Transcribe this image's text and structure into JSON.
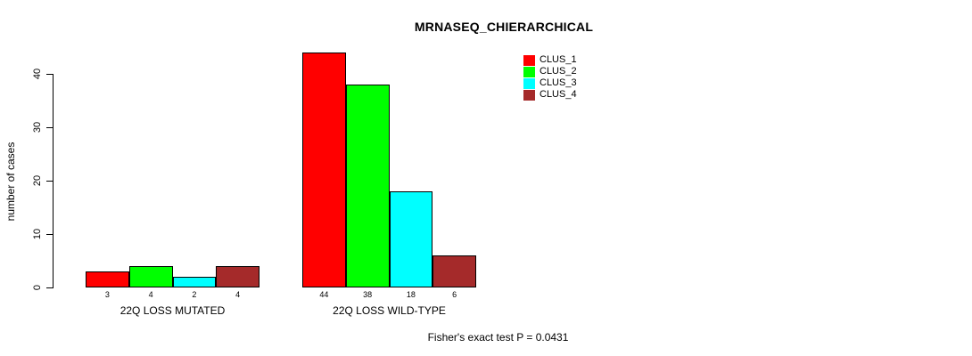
{
  "chart_data": {
    "type": "bar",
    "title": "MRNASEQ_CHIERARCHICAL",
    "ylabel": "number of cases",
    "xlabel": "",
    "categories": [
      "22Q LOSS MUTATED",
      "22Q LOSS WILD-TYPE"
    ],
    "series": [
      {
        "name": "CLUS_1",
        "color": "#FF0000",
        "values": [
          3,
          44
        ]
      },
      {
        "name": "CLUS_2",
        "color": "#00FF00",
        "values": [
          4,
          38
        ]
      },
      {
        "name": "CLUS_3",
        "color": "#00FFFF",
        "values": [
          2,
          18
        ]
      },
      {
        "name": "CLUS_4",
        "color": "#A52A2A",
        "values": [
          4,
          6
        ]
      }
    ],
    "bar_value_labels": [
      [
        "3",
        "4",
        "2",
        "4"
      ],
      [
        "44",
        "38",
        "18",
        "6"
      ]
    ],
    "yticks": [
      0,
      10,
      20,
      30,
      40
    ],
    "ylim": [
      0,
      44
    ],
    "grid": false,
    "legend_position": "top-right",
    "annotation": "Fisher's exact test P = 0.0431",
    "background_color": "#FFFFFF",
    "axis_color": "#000000",
    "bar_border_color": "#000000"
  }
}
